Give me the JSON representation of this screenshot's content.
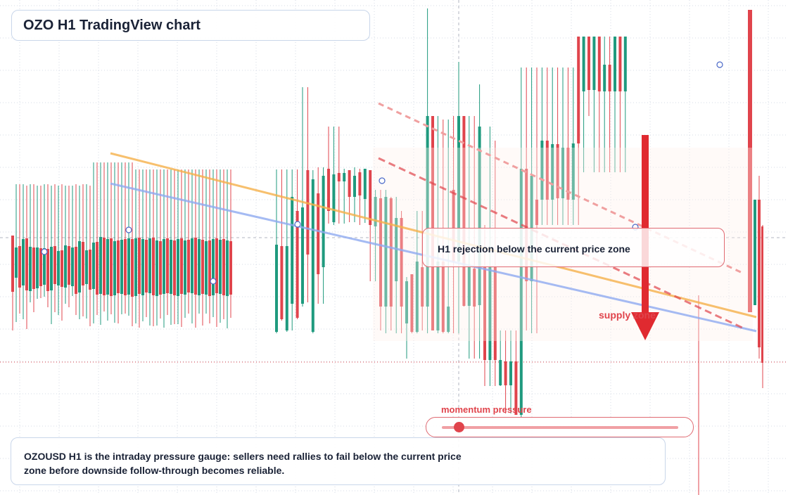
{
  "title": "OZO H1 TradingView chart",
  "callout": {
    "text": "H1 rejection below the current price zone"
  },
  "supply_label": "supply zone",
  "momentum": {
    "label": "momentum pressure",
    "value": 0.07
  },
  "note": "OZOUSD H1 is the intraday pressure gauge: sellers need rallies to fail below the current price zone before downside follow-through becomes reliable.",
  "colors": {
    "up": "#1f9a7e",
    "down": "#e0444c",
    "trend_orange": "#f5b04a",
    "trend_blue": "#8faaf0",
    "grid": "#d5dbe6",
    "arrow": "#e02a30",
    "support_line": "#e0444c"
  },
  "chart_data": {
    "type": "candlestick",
    "candles": [
      [
        "d",
        335,
        415,
        337,
        470
      ],
      [
        "u",
        395,
        352,
        262,
        458
      ],
      [
        "d",
        350,
        409,
        262,
        446
      ],
      [
        "u",
        406,
        340,
        262,
        454
      ],
      [
        "d",
        339,
        413,
        264,
        468
      ],
      [
        "u",
        414,
        351,
        262,
        430
      ],
      [
        "d",
        352,
        411,
        262,
        444
      ],
      [
        "u",
        410,
        352,
        264,
        425
      ],
      [
        "d",
        353,
        407,
        264,
        424
      ],
      [
        "u",
        405,
        353,
        262,
        422
      ],
      [
        "d",
        354,
        414,
        262,
        437
      ],
      [
        "u",
        413,
        351,
        264,
        461
      ],
      [
        "d",
        350,
        404,
        262,
        444
      ],
      [
        "u",
        406,
        357,
        264,
        448
      ],
      [
        "d",
        356,
        408,
        262,
        456
      ],
      [
        "u",
        409,
        349,
        264,
        432
      ],
      [
        "d",
        350,
        405,
        264,
        437
      ],
      [
        "u",
        407,
        352,
        264,
        421
      ],
      [
        "d",
        351,
        418,
        262,
        448
      ],
      [
        "u",
        416,
        343,
        264,
        454
      ],
      [
        "d",
        344,
        406,
        262,
        450
      ],
      [
        "u",
        404,
        356,
        262,
        453
      ],
      [
        "d",
        355,
        412,
        264,
        464
      ],
      [
        "u",
        411,
        345,
        231,
        460
      ],
      [
        "d",
        344,
        419,
        231,
        448
      ],
      [
        "u",
        418,
        337,
        231,
        462
      ],
      [
        "d",
        338,
        420,
        231,
        443
      ],
      [
        "u",
        419,
        340,
        231,
        456
      ],
      [
        "d",
        339,
        421,
        231,
        447
      ],
      [
        "u",
        420,
        343,
        231,
        459
      ],
      [
        "d",
        342,
        417,
        231,
        460
      ],
      [
        "u",
        418,
        341,
        231,
        447
      ],
      [
        "d",
        340,
        420,
        231,
        446
      ],
      [
        "u",
        419,
        339,
        231,
        449
      ],
      [
        "d",
        340,
        422,
        231,
        464
      ],
      [
        "u",
        421,
        339,
        241,
        460
      ],
      [
        "d",
        338,
        418,
        241,
        466
      ],
      [
        "u",
        420,
        340,
        241,
        457
      ],
      [
        "d",
        341,
        416,
        241,
        451
      ],
      [
        "u",
        417,
        339,
        241,
        463
      ],
      [
        "d",
        338,
        420,
        241,
        464
      ],
      [
        "u",
        421,
        342,
        241,
        463
      ],
      [
        "d",
        343,
        419,
        241,
        453
      ],
      [
        "u",
        418,
        340,
        241,
        466
      ],
      [
        "d",
        339,
        417,
        241,
        448
      ],
      [
        "u",
        418,
        341,
        241,
        462
      ],
      [
        "d",
        342,
        420,
        241,
        461
      ],
      [
        "u",
        421,
        340,
        241,
        461
      ],
      [
        "d",
        339,
        418,
        241,
        465
      ],
      [
        "u",
        419,
        342,
        241,
        452
      ],
      [
        "d",
        341,
        416,
        241,
        446
      ],
      [
        "u",
        417,
        339,
        241,
        460
      ],
      [
        "d",
        338,
        419,
        241,
        466
      ],
      [
        "u",
        420,
        340,
        241,
        446
      ],
      [
        "d",
        341,
        418,
        241,
        463
      ],
      [
        "u",
        419,
        343,
        241,
        446
      ],
      [
        "d",
        342,
        421,
        241,
        460
      ],
      [
        "u",
        420,
        340,
        241,
        451
      ],
      [
        "d",
        339,
        417,
        241,
        465
      ],
      [
        "u",
        418,
        341,
        241,
        459
      ],
      [
        "d",
        340,
        420,
        241,
        454
      ],
      [
        "u",
        421,
        342,
        241,
        467
      ],
      [
        "d",
        343,
        419,
        241,
        452
      ]
    ]
  }
}
